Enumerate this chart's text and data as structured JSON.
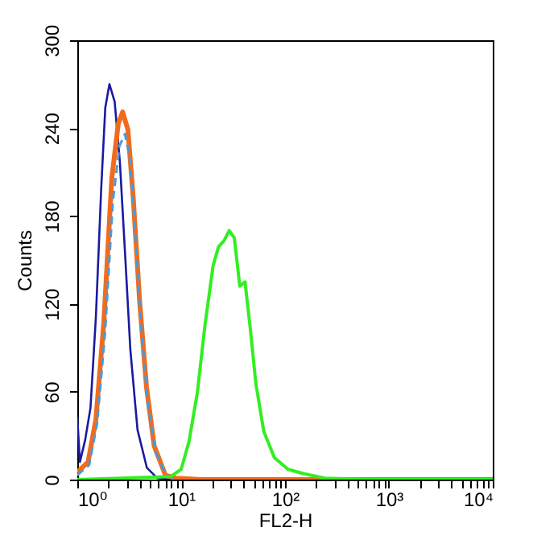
{
  "chart_data": {
    "type": "line",
    "xlabel": "FL2-H",
    "ylabel": "Counts",
    "log": "x",
    "xlim": [
      1,
      10000
    ],
    "ylim": [
      0,
      300
    ],
    "xticks": [
      {
        "value": 1,
        "label": "10⁰"
      },
      {
        "value": 2,
        "label": null
      },
      {
        "value": 3,
        "label": null
      },
      {
        "value": 4,
        "label": null
      },
      {
        "value": 5,
        "label": null
      },
      {
        "value": 6,
        "label": null
      },
      {
        "value": 7,
        "label": null
      },
      {
        "value": 8,
        "label": null
      },
      {
        "value": 9,
        "label": null
      },
      {
        "value": 10,
        "label": "10¹"
      },
      {
        "value": 20,
        "label": null
      },
      {
        "value": 30,
        "label": null
      },
      {
        "value": 40,
        "label": null
      },
      {
        "value": 50,
        "label": null
      },
      {
        "value": 60,
        "label": null
      },
      {
        "value": 70,
        "label": null
      },
      {
        "value": 80,
        "label": null
      },
      {
        "value": 90,
        "label": null
      },
      {
        "value": 100,
        "label": "10²"
      },
      {
        "value": 200,
        "label": null
      },
      {
        "value": 300,
        "label": null
      },
      {
        "value": 400,
        "label": null
      },
      {
        "value": 500,
        "label": null
      },
      {
        "value": 600,
        "label": null
      },
      {
        "value": 700,
        "label": null
      },
      {
        "value": 800,
        "label": null
      },
      {
        "value": 900,
        "label": null
      },
      {
        "value": 1000,
        "label": "10³"
      },
      {
        "value": 2000,
        "label": null
      },
      {
        "value": 3000,
        "label": null
      },
      {
        "value": 4000,
        "label": null
      },
      {
        "value": 5000,
        "label": null
      },
      {
        "value": 6000,
        "label": null
      },
      {
        "value": 7000,
        "label": null
      },
      {
        "value": 8000,
        "label": null
      },
      {
        "value": 9000,
        "label": null
      },
      {
        "value": 10000,
        "label": "10⁴"
      }
    ],
    "yticks": [
      0,
      60,
      120,
      180,
      240,
      300
    ],
    "grid": false,
    "marker": "none",
    "series": [
      {
        "color": "#1a1aa0",
        "line_style": "solid",
        "x": [
          1,
          1.06,
          1.19,
          1.34,
          1.51,
          1.7,
          1.86,
          2.04,
          2.29,
          2.57,
          2.88,
          3.24,
          3.8,
          4.68,
          5.89,
          8
        ],
        "values": [
          43,
          12,
          27,
          49,
          111,
          199,
          254,
          270,
          258,
          217,
          155,
          89,
          34,
          8,
          1,
          0
        ]
      },
      {
        "color": "#f26b1d",
        "line_style": "solid",
        "x": [
          1,
          1.27,
          1.51,
          1.8,
          2.15,
          2.48,
          2.73,
          3.07,
          3.46,
          3.98,
          4.64,
          5.5,
          7.05,
          8.9,
          15.9,
          10000
        ],
        "values": [
          5,
          12,
          41,
          107,
          206,
          243,
          251,
          239,
          192,
          122,
          63,
          23,
          3,
          1,
          0,
          0
        ]
      },
      {
        "color": "#4a9ad6",
        "line_style": "dashed",
        "x": [
          1,
          1.3,
          1.55,
          1.85,
          2.2,
          2.55,
          2.88,
          3.2,
          3.6,
          4.1,
          4.8,
          5.7,
          7.2,
          9
        ],
        "values": [
          3,
          10,
          38,
          100,
          190,
          228,
          236,
          220,
          170,
          105,
          50,
          18,
          3,
          0
        ]
      },
      {
        "color": "#33ee22",
        "line_style": "solid",
        "x": [
          1,
          7.9,
          10,
          11.9,
          14.3,
          17,
          20.3,
          22.9,
          25.8,
          29,
          32.5,
          36.7,
          41.2,
          46.5,
          52.3,
          62.4,
          79,
          107,
          152,
          241,
          700,
          10000
        ],
        "values": [
          0,
          2,
          7,
          26,
          59,
          106,
          146,
          159,
          163,
          170,
          165,
          132,
          135,
          102,
          66,
          33,
          15,
          7,
          4,
          1,
          0,
          0
        ]
      }
    ]
  }
}
